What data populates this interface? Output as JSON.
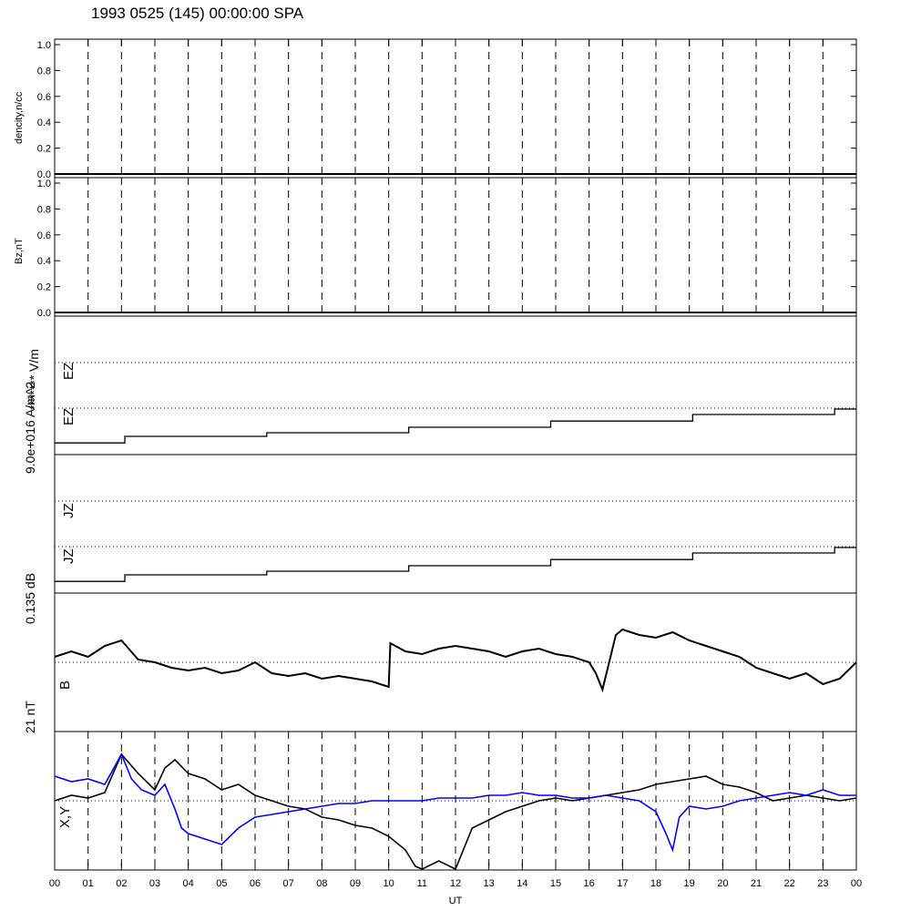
{
  "title": "1993 0525 (145) 00:00:00 SPA",
  "colors": {
    "axis": "#000000",
    "series_black": "#000000",
    "series_blue": "#0000ff"
  },
  "chart_data": [
    {
      "type": "line",
      "panel": "density",
      "ylabel": "dencity,n/cc",
      "ylim": [
        0,
        1.0
      ],
      "yticks": [
        "0.0",
        "0.2",
        "0.4",
        "0.6",
        "0.8",
        "1.0"
      ],
      "series": [
        {
          "values": []
        }
      ]
    },
    {
      "type": "line",
      "panel": "bz",
      "ylabel": "Bz,nT",
      "ylim": [
        0,
        1.0
      ],
      "yticks": [
        "0.0",
        "0.2",
        "0.4",
        "0.6",
        "0.8",
        "1.0"
      ],
      "series": [
        {
          "values": []
        }
      ]
    },
    {
      "type": "line",
      "panel": "ez",
      "labels": [
        "EZ",
        "EZ"
      ],
      "scale_label": "******* V/m",
      "series": [
        {
          "x": [
            0,
            2.1,
            6.35,
            10.6,
            14.85,
            19.1,
            23.35,
            24
          ],
          "values": [
            0.12,
            0.3,
            0.4,
            0.55,
            0.72,
            0.9,
            1.05,
            1.05
          ]
        }
      ]
    },
    {
      "type": "line",
      "panel": "jz",
      "labels": [
        "JZ",
        "JZ"
      ],
      "scale_label": "9.0e+016 A/m^2",
      "series": [
        {
          "x": [
            0,
            2.1,
            6.35,
            10.6,
            14.85,
            19.1,
            23.35,
            24
          ],
          "values": [
            0.12,
            0.3,
            0.4,
            0.55,
            0.72,
            0.9,
            1.05,
            1.05
          ]
        }
      ]
    },
    {
      "type": "line",
      "panel": "b",
      "labels": [
        "B"
      ],
      "scale_label": "0.135 dB",
      "series": [
        {
          "x": [
            0,
            0.5,
            1,
            1.5,
            2,
            2.5,
            3,
            3.5,
            4,
            4.5,
            5,
            5.5,
            6,
            6.5,
            7,
            7.5,
            8,
            8.5,
            9,
            9.5,
            10,
            10.05,
            10.5,
            11,
            11.5,
            12,
            12.5,
            13,
            13.5,
            14,
            14.5,
            15,
            15.5,
            16,
            16.2,
            16.4,
            16.8,
            17,
            17.5,
            18,
            18.5,
            19,
            19.5,
            20,
            20.5,
            21,
            21.5,
            22,
            22.5,
            23,
            23.5,
            24
          ],
          "values": [
            0.1,
            0.2,
            0.1,
            0.3,
            0.4,
            0.05,
            0.0,
            -0.1,
            -0.15,
            -0.1,
            -0.2,
            -0.15,
            0.0,
            -0.2,
            -0.25,
            -0.2,
            -0.3,
            -0.25,
            -0.3,
            -0.35,
            -0.45,
            0.35,
            0.2,
            0.15,
            0.25,
            0.3,
            0.25,
            0.2,
            0.1,
            0.2,
            0.25,
            0.15,
            0.1,
            0.0,
            -0.2,
            -0.5,
            0.5,
            0.6,
            0.5,
            0.45,
            0.55,
            0.4,
            0.3,
            0.2,
            0.1,
            -0.1,
            -0.2,
            -0.3,
            -0.2,
            -0.4,
            -0.3,
            0.0
          ]
        }
      ]
    },
    {
      "type": "line",
      "panel": "xy",
      "labels": [
        "X,Y"
      ],
      "scale_label": "21 nT",
      "series": [
        {
          "color": "#000000",
          "x": [
            0,
            0.5,
            1,
            1.5,
            2,
            2.5,
            3,
            3.3,
            3.6,
            4,
            4.5,
            5,
            5.5,
            6,
            6.5,
            7,
            7.5,
            8,
            8.5,
            9,
            9.5,
            10,
            10.5,
            10.8,
            11,
            11.5,
            12,
            12.5,
            13,
            13.5,
            14,
            14.5,
            15,
            15.5,
            16,
            16.5,
            17,
            17.5,
            18,
            18.5,
            19,
            19.5,
            20,
            20.5,
            21,
            21.5,
            22,
            22.5,
            23,
            23.5,
            24
          ],
          "values": [
            0.0,
            0.1,
            0.05,
            0.15,
            0.85,
            0.5,
            0.2,
            0.6,
            0.75,
            0.5,
            0.4,
            0.2,
            0.3,
            0.1,
            0.0,
            -0.1,
            -0.15,
            -0.3,
            -0.35,
            -0.45,
            -0.5,
            -0.65,
            -0.9,
            -1.2,
            -1.3,
            -1.1,
            -1.25,
            -0.5,
            -0.35,
            -0.2,
            -0.1,
            0.0,
            0.05,
            0.0,
            0.05,
            0.1,
            0.15,
            0.2,
            0.3,
            0.35,
            0.4,
            0.45,
            0.3,
            0.25,
            0.15,
            0.0,
            0.05,
            0.1,
            0.05,
            0.0,
            0.05
          ]
        },
        {
          "color": "#0000ff",
          "x": [
            0,
            0.5,
            1,
            1.5,
            2,
            2.3,
            2.6,
            3,
            3.3,
            3.6,
            3.8,
            4,
            4.5,
            5,
            5.5,
            6,
            6.5,
            7,
            7.5,
            8,
            8.5,
            9,
            9.5,
            10,
            10.5,
            11,
            11.5,
            12,
            12.5,
            13,
            13.5,
            14,
            14.5,
            15,
            15.5,
            16,
            16.5,
            17,
            17.5,
            18,
            18.3,
            18.5,
            18.7,
            19,
            19.5,
            20,
            20.5,
            21,
            21.5,
            22,
            22.5,
            23,
            23.5,
            24
          ],
          "values": [
            0.45,
            0.35,
            0.4,
            0.3,
            0.85,
            0.4,
            0.2,
            0.1,
            0.3,
            -0.15,
            -0.5,
            -0.6,
            -0.7,
            -0.8,
            -0.5,
            -0.3,
            -0.25,
            -0.2,
            -0.15,
            -0.1,
            -0.05,
            -0.05,
            0.0,
            0.0,
            0.0,
            0.0,
            0.05,
            0.05,
            0.05,
            0.1,
            0.1,
            0.15,
            0.1,
            0.1,
            0.05,
            0.05,
            0.1,
            0.05,
            0.0,
            -0.2,
            -0.6,
            -0.9,
            -0.3,
            -0.1,
            -0.15,
            -0.1,
            0.0,
            0.05,
            0.1,
            0.15,
            0.1,
            0.2,
            0.1,
            0.1
          ]
        }
      ]
    }
  ],
  "x_axis": {
    "label": "UT",
    "range": [
      0,
      24
    ],
    "ticks": [
      "00",
      "01",
      "02",
      "03",
      "04",
      "05",
      "06",
      "07",
      "08",
      "09",
      "10",
      "11",
      "12",
      "13",
      "14",
      "15",
      "16",
      "17",
      "18",
      "19",
      "20",
      "21",
      "22",
      "23",
      "00"
    ]
  }
}
